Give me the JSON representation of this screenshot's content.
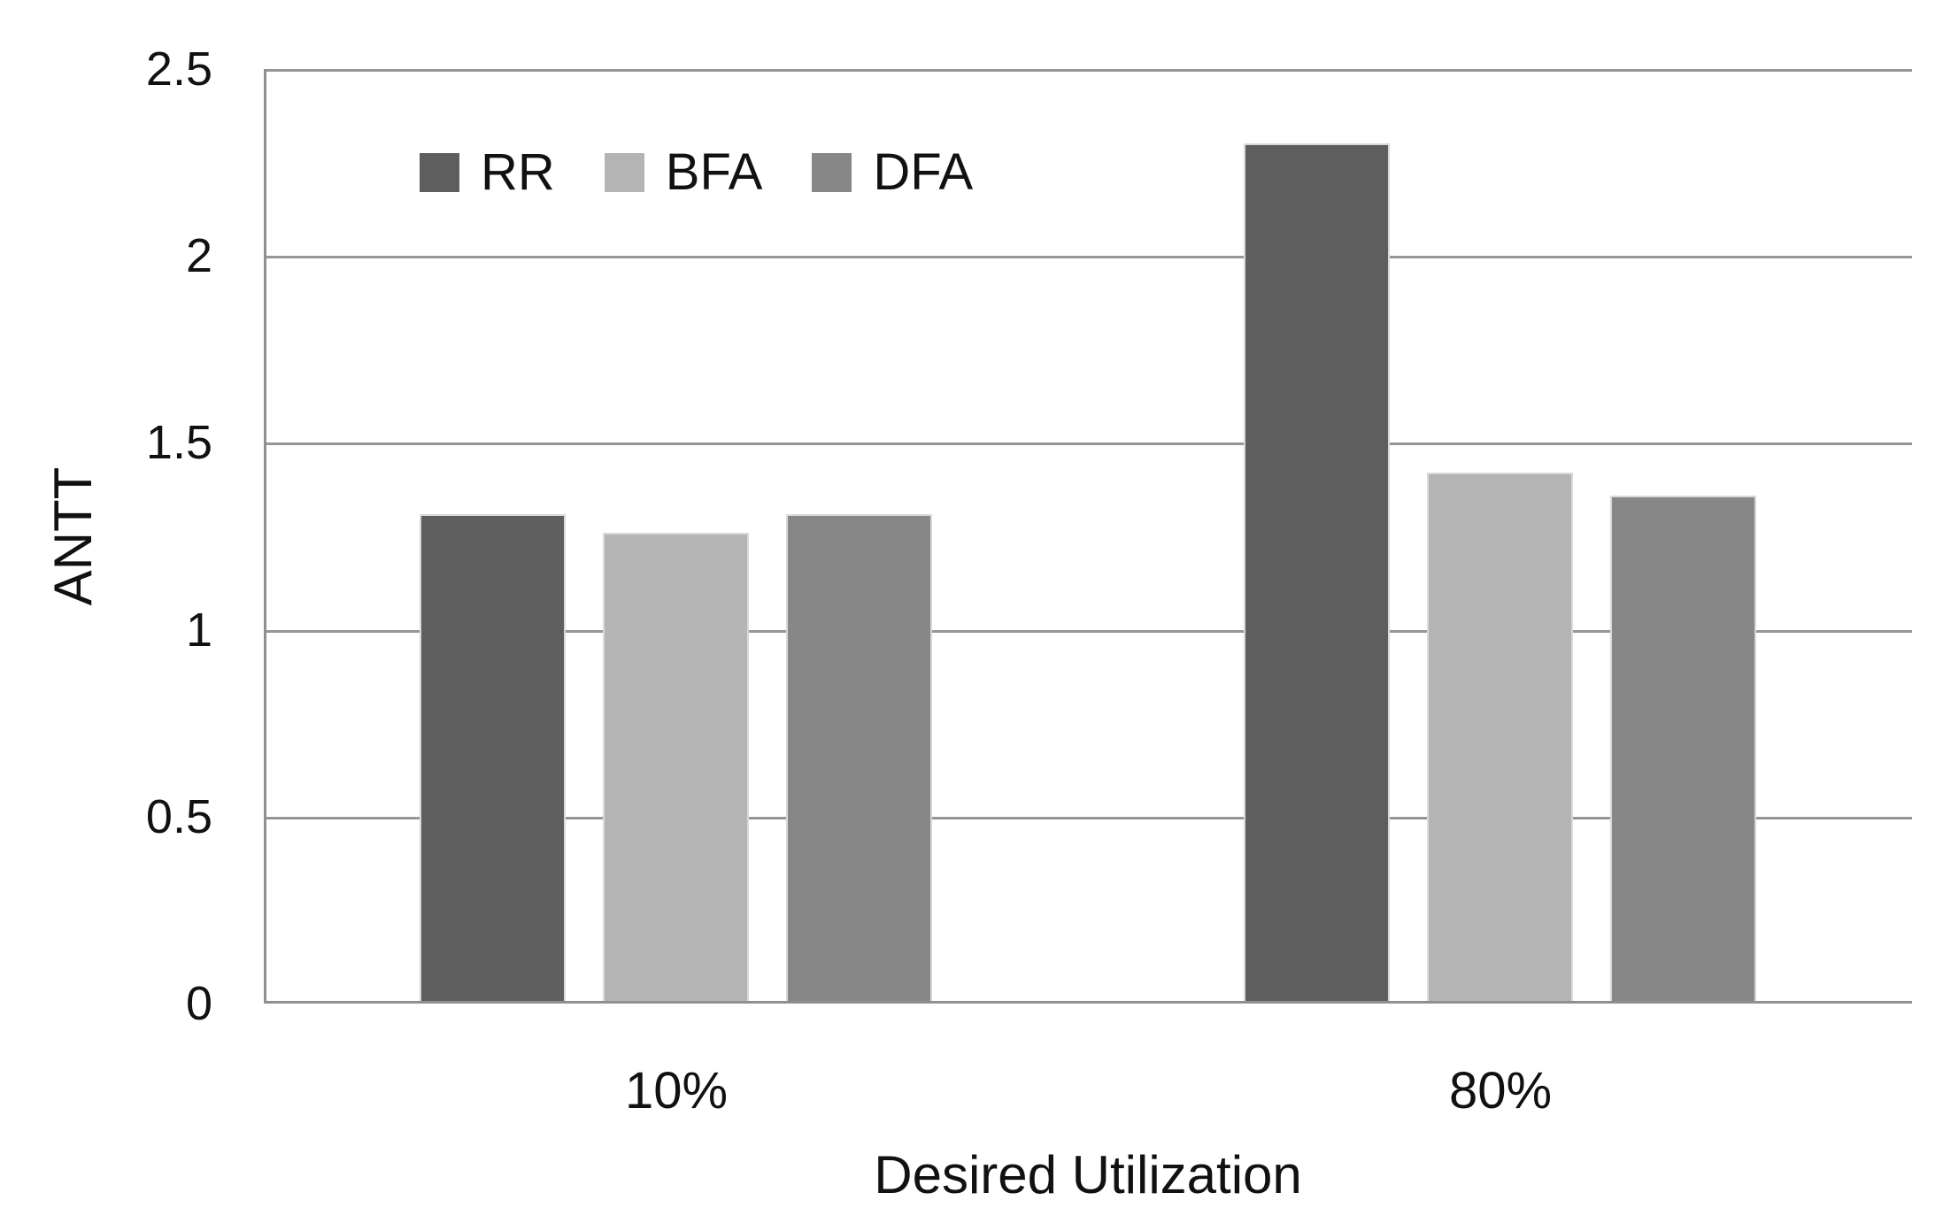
{
  "chart_data": {
    "type": "bar",
    "title": "",
    "categories": [
      "10%",
      "80%"
    ],
    "series": [
      {
        "name": "RR",
        "color": "#5e5e5e",
        "values": [
          1.31,
          2.3
        ]
      },
      {
        "name": "BFA",
        "color": "#b4b4b4",
        "values": [
          1.26,
          1.42
        ]
      },
      {
        "name": "DFA",
        "color": "#878787",
        "values": [
          1.31,
          1.36
        ]
      }
    ],
    "xlabel": "Desired Utilization",
    "ylabel": "ANTT",
    "ylim": [
      0,
      2.5
    ],
    "ytick_step": 0.5,
    "ytick_labels": [
      "0",
      "0.5",
      "1",
      "1.5",
      "2",
      "2.5"
    ],
    "grid": true,
    "legend": {
      "entries": [
        "RR",
        "BFA",
        "DFA"
      ],
      "position": "top-left-inside"
    },
    "colors": {
      "grid": "#969696",
      "axis": "#8f8f8f",
      "text": "#111111",
      "bar_border": "#d9d9d9",
      "background": "#ffffff"
    }
  }
}
